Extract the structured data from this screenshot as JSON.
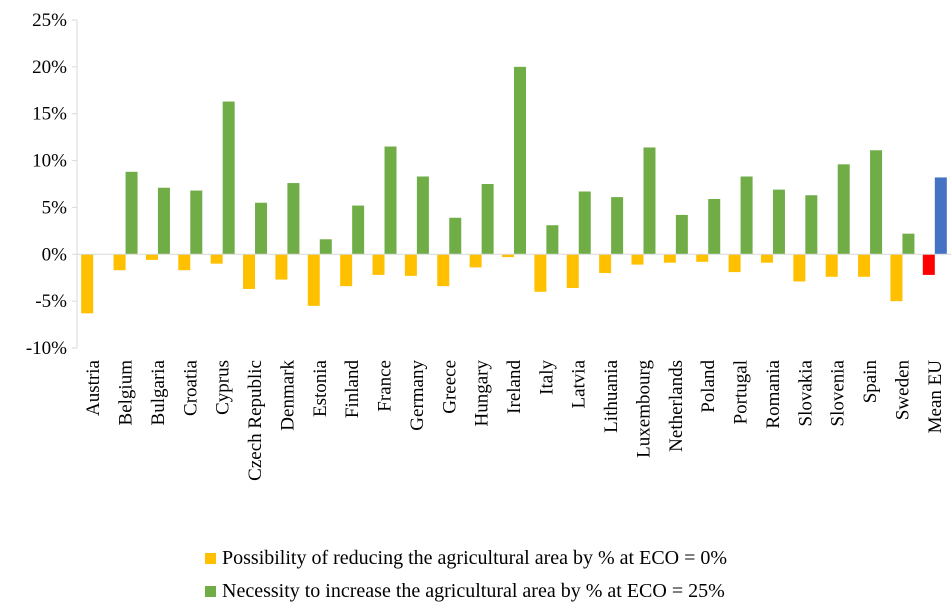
{
  "chart_data": {
    "type": "bar",
    "title": "",
    "xlabel": "",
    "ylabel": "",
    "ylim": [
      -10,
      25
    ],
    "yticks": [
      -10,
      -5,
      0,
      5,
      10,
      15,
      20,
      25
    ],
    "ytick_labels": [
      "-10%",
      "-5%",
      "0%",
      "5%",
      "10%",
      "15%",
      "20%",
      "25%"
    ],
    "grid": false,
    "legend_position": "bottom",
    "categories": [
      "Austria",
      "Belgium",
      "Bulgaria",
      "Croatia",
      "Cyprus",
      "Czech Republic",
      "Denmark",
      "Estonia",
      "Finland",
      "France",
      "Germany",
      "Greece",
      "Hungary",
      "Ireland",
      "Italy",
      "Latvia",
      "Lithuania",
      "Luxembourg",
      "Netherlands",
      "Poland",
      "Portugal",
      "Romania",
      "Slovakia",
      "Slovenia",
      "Spain",
      "Sweden",
      "Mean EU"
    ],
    "series": [
      {
        "name": "Possibility of reducing the agricultural area by % at ECO = 0%",
        "color": "#FFC000",
        "values": [
          -6.3,
          -1.7,
          -0.6,
          -1.7,
          -1.0,
          -3.7,
          -2.7,
          -5.5,
          -3.4,
          -2.2,
          -2.3,
          -3.4,
          -1.4,
          -0.3,
          -4.0,
          -3.6,
          -2.0,
          -1.1,
          -0.9,
          -0.8,
          -1.9,
          -0.9,
          -2.9,
          -2.4,
          -2.4,
          -5.0,
          -2.2
        ]
      },
      {
        "name": "Necessity to increase the agricultural area by % at ECO = 25%",
        "color": "#70AD47",
        "values": [
          0,
          8.8,
          7.1,
          6.8,
          16.3,
          5.5,
          7.6,
          1.6,
          5.2,
          11.5,
          8.3,
          3.9,
          7.5,
          20.0,
          3.1,
          6.7,
          6.1,
          11.4,
          4.2,
          5.9,
          8.3,
          6.9,
          6.3,
          9.6,
          11.1,
          2.2,
          8.2
        ]
      }
    ],
    "mean_eu_colors": {
      "negative": "#FF0000",
      "positive": "#4472C4"
    }
  }
}
